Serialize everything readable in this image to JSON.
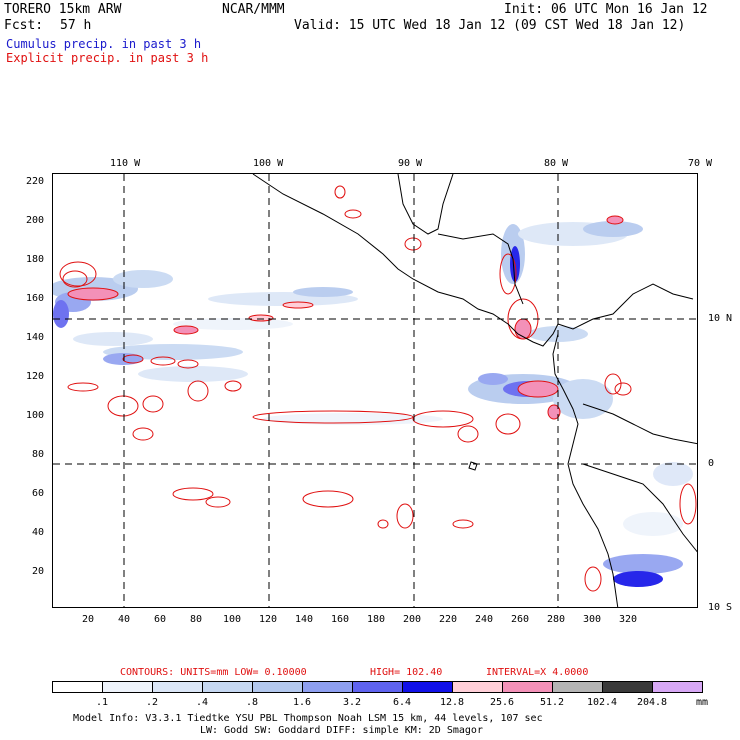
{
  "header": {
    "model": "TORERO  15km ARW",
    "org": "NCAR/MMM",
    "init": "Init: 06 UTC Mon 16 Jan 12",
    "fcst_label": "Fcst:",
    "fcst_value": "57 h",
    "valid": "Valid: 15 UTC Wed 18 Jan 12 (09 CST Wed 18 Jan 12)",
    "legend_cumulus": "Cumulus precip. in past 3 h",
    "legend_explicit": "Explicit precip. in past 3 h",
    "cumulus_color": "#1a1acc",
    "explicit_color": "#e01010"
  },
  "map": {
    "lon_labels": [
      "110 W",
      "100 W",
      "90 W",
      "80 W",
      "70 W"
    ],
    "lat_labels": [
      "10 N",
      "0",
      "10 S"
    ],
    "y_ticks": [
      "220",
      "200",
      "180",
      "160",
      "140",
      "120",
      "100",
      "80",
      "60",
      "40",
      "20"
    ],
    "x_ticks": [
      "20",
      "40",
      "60",
      "80",
      "100",
      "120",
      "140",
      "160",
      "180",
      "200",
      "220",
      "240",
      "260",
      "280",
      "300",
      "320"
    ]
  },
  "contour_info": {
    "units": "CONTOURS:  UNITS=mm  LOW= 0.10000",
    "high": "HIGH=  102.40",
    "interval": "INTERVAL=X  4.0000"
  },
  "colorbar": {
    "colors": [
      "#ffffff",
      "#eef3fb",
      "#dbe6f7",
      "#c6d8f2",
      "#b3c8ee",
      "#8e9ff0",
      "#5f63ef",
      "#1010e8",
      "#ffcfd8",
      "#f391b8",
      "#b4b4b4",
      "#3a3a3a",
      "#d7a8f5"
    ],
    "labels": [
      ".1",
      ".2",
      ".4",
      ".8",
      "1.6",
      "3.2",
      "6.4",
      "12.8",
      "25.6",
      "51.2",
      "102.4",
      "204.8"
    ],
    "unit": "mm"
  },
  "footer": {
    "line1": "Model Info: V3.3.1    Tiedtke YSU PBL  Thompson    Noah LSM  15 km,   44 levels,  107 sec",
    "line2": "LW: Godd SW: Goddard DIFF: simple KM: 2D Smagor"
  }
}
